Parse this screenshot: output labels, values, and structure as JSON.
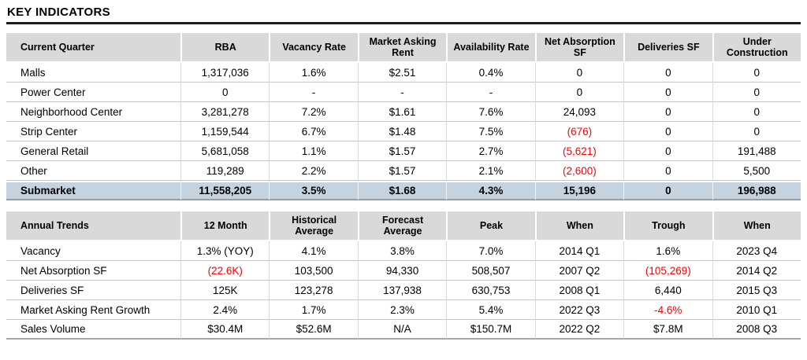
{
  "page": {
    "title": "KEY INDICATORS"
  },
  "colors": {
    "header_bg": "#d9d9d9",
    "highlight_bg": "#c5d3de",
    "negative": "#ff0000",
    "title_rule": "#1c1c1c"
  },
  "tables": [
    {
      "name": "current-quarter",
      "columns": [
        "Current Quarter",
        "RBA",
        "Vacancy Rate",
        "Market Asking Rent",
        "Availability Rate",
        "Net Absorption SF",
        "Deliveries SF",
        "Under Construction"
      ],
      "rows": [
        {
          "cells": [
            "Malls",
            "1,317,036",
            "1.6%",
            "$2.51",
            "0.4%",
            "0",
            "0",
            "0"
          ]
        },
        {
          "cells": [
            "Power Center",
            "0",
            "-",
            "-",
            "-",
            "0",
            "0",
            "0"
          ]
        },
        {
          "cells": [
            "Neighborhood Center",
            "3,281,278",
            "7.2%",
            "$1.61",
            "7.6%",
            "24,093",
            "0",
            "0"
          ]
        },
        {
          "cells": [
            "Strip Center",
            "1,159,544",
            "6.7%",
            "$1.48",
            "7.5%",
            {
              "v": "(676)",
              "neg": true
            },
            "0",
            "0"
          ]
        },
        {
          "cells": [
            "General Retail",
            "5,681,058",
            "1.1%",
            "$1.57",
            "2.7%",
            {
              "v": "(5,621)",
              "neg": true
            },
            "0",
            "191,488"
          ]
        },
        {
          "cells": [
            "Other",
            "119,289",
            "2.2%",
            "$1.57",
            "2.1%",
            {
              "v": "(2,600)",
              "neg": true
            },
            "0",
            "5,500"
          ]
        },
        {
          "cells": [
            "Submarket",
            "11,558,205",
            "3.5%",
            "$1.68",
            "4.3%",
            "15,196",
            "0",
            "196,988"
          ],
          "highlight": true
        }
      ]
    },
    {
      "name": "annual-trends",
      "columns": [
        "Annual Trends",
        "12 Month",
        "Historical Average",
        "Forecast Average",
        "Peak",
        "When",
        "Trough",
        "When"
      ],
      "rows": [
        {
          "cells": [
            "Vacancy",
            "1.3% (YOY)",
            "4.1%",
            "3.8%",
            "7.0%",
            "2014 Q1",
            "1.6%",
            "2023 Q4"
          ]
        },
        {
          "cells": [
            "Net Absorption SF",
            {
              "v": "(22.6K)",
              "neg": true
            },
            "103,500",
            "94,330",
            "508,507",
            "2007 Q2",
            {
              "v": "(105,269)",
              "neg": true
            },
            "2014 Q2"
          ]
        },
        {
          "cells": [
            "Deliveries SF",
            "125K",
            "123,278",
            "137,938",
            "630,753",
            "2008 Q1",
            "6,440",
            "2015 Q3"
          ]
        },
        {
          "cells": [
            "Market Asking Rent Growth",
            "2.4%",
            "1.7%",
            "2.3%",
            "5.4%",
            "2022 Q3",
            {
              "v": "-4.6%",
              "neg": true
            },
            "2010 Q1"
          ]
        },
        {
          "cells": [
            "Sales Volume",
            "$30.4M",
            "$52.6M",
            "N/A",
            "$150.7M",
            "2022 Q2",
            "$7.8M",
            "2008 Q3"
          ]
        }
      ]
    }
  ]
}
